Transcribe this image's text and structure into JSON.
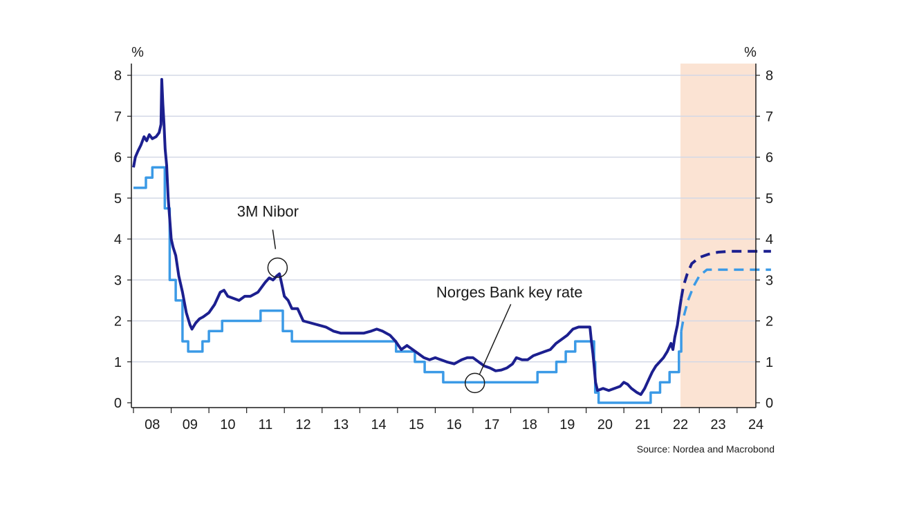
{
  "chart_data": {
    "type": "line",
    "y_unit_left": "%",
    "y_unit_right": "%",
    "ylim": [
      0,
      8
    ],
    "yticks": [
      0,
      1,
      2,
      3,
      4,
      5,
      6,
      7,
      8
    ],
    "xtick_labels": [
      "08",
      "09",
      "10",
      "11",
      "12",
      "13",
      "14",
      "15",
      "16",
      "17",
      "18",
      "19",
      "20",
      "21",
      "22",
      "23",
      "24"
    ],
    "xlim": [
      2008.0,
      2024.9
    ],
    "grid": "horizontal",
    "forecast_shading": {
      "from": 2022.5,
      "to": 2024.9,
      "color": "#fbe3d3"
    },
    "colors": {
      "nibor": "#1c1f8f",
      "keyrate": "#3b9ae6",
      "grid": "#d3d8e6",
      "axis": "#1a1a1a"
    },
    "series": [
      {
        "name": "3M Nibor",
        "style": "solid",
        "points": [
          [
            2008.0,
            5.75
          ],
          [
            2008.05,
            6.0
          ],
          [
            2008.12,
            6.15
          ],
          [
            2008.2,
            6.3
          ],
          [
            2008.28,
            6.5
          ],
          [
            2008.35,
            6.4
          ],
          [
            2008.42,
            6.55
          ],
          [
            2008.5,
            6.45
          ],
          [
            2008.6,
            6.5
          ],
          [
            2008.68,
            6.6
          ],
          [
            2008.73,
            6.8
          ],
          [
            2008.75,
            7.9
          ],
          [
            2008.78,
            7.3
          ],
          [
            2008.81,
            6.8
          ],
          [
            2008.84,
            6.2
          ],
          [
            2008.88,
            5.8
          ],
          [
            2008.92,
            5.0
          ],
          [
            2008.96,
            4.5
          ],
          [
            2009.0,
            4.0
          ],
          [
            2009.05,
            3.8
          ],
          [
            2009.12,
            3.6
          ],
          [
            2009.2,
            3.1
          ],
          [
            2009.3,
            2.7
          ],
          [
            2009.4,
            2.2
          ],
          [
            2009.5,
            1.9
          ],
          [
            2009.55,
            1.8
          ],
          [
            2009.65,
            1.95
          ],
          [
            2009.75,
            2.05
          ],
          [
            2009.85,
            2.1
          ],
          [
            2010.0,
            2.2
          ],
          [
            2010.15,
            2.4
          ],
          [
            2010.3,
            2.7
          ],
          [
            2010.4,
            2.75
          ],
          [
            2010.5,
            2.6
          ],
          [
            2010.65,
            2.55
          ],
          [
            2010.8,
            2.5
          ],
          [
            2010.95,
            2.6
          ],
          [
            2011.1,
            2.6
          ],
          [
            2011.3,
            2.7
          ],
          [
            2011.5,
            2.95
          ],
          [
            2011.6,
            3.05
          ],
          [
            2011.7,
            3.0
          ],
          [
            2011.8,
            3.1
          ],
          [
            2011.87,
            3.15
          ],
          [
            2011.92,
            2.95
          ],
          [
            2012.0,
            2.6
          ],
          [
            2012.1,
            2.5
          ],
          [
            2012.2,
            2.3
          ],
          [
            2012.35,
            2.3
          ],
          [
            2012.5,
            2.0
          ],
          [
            2012.7,
            1.95
          ],
          [
            2012.9,
            1.9
          ],
          [
            2013.1,
            1.85
          ],
          [
            2013.3,
            1.75
          ],
          [
            2013.5,
            1.7
          ],
          [
            2013.7,
            1.7
          ],
          [
            2013.9,
            1.7
          ],
          [
            2014.1,
            1.7
          ],
          [
            2014.3,
            1.75
          ],
          [
            2014.45,
            1.8
          ],
          [
            2014.6,
            1.75
          ],
          [
            2014.8,
            1.65
          ],
          [
            2014.95,
            1.5
          ],
          [
            2015.1,
            1.3
          ],
          [
            2015.25,
            1.4
          ],
          [
            2015.4,
            1.3
          ],
          [
            2015.55,
            1.2
          ],
          [
            2015.7,
            1.1
          ],
          [
            2015.85,
            1.05
          ],
          [
            2016.0,
            1.1
          ],
          [
            2016.15,
            1.05
          ],
          [
            2016.3,
            1.0
          ],
          [
            2016.5,
            0.95
          ],
          [
            2016.7,
            1.05
          ],
          [
            2016.85,
            1.1
          ],
          [
            2017.0,
            1.1
          ],
          [
            2017.15,
            1.0
          ],
          [
            2017.3,
            0.9
          ],
          [
            2017.45,
            0.85
          ],
          [
            2017.6,
            0.78
          ],
          [
            2017.75,
            0.8
          ],
          [
            2017.9,
            0.85
          ],
          [
            2018.05,
            0.95
          ],
          [
            2018.15,
            1.1
          ],
          [
            2018.3,
            1.05
          ],
          [
            2018.45,
            1.05
          ],
          [
            2018.6,
            1.15
          ],
          [
            2018.75,
            1.2
          ],
          [
            2018.9,
            1.25
          ],
          [
            2019.05,
            1.3
          ],
          [
            2019.2,
            1.45
          ],
          [
            2019.35,
            1.55
          ],
          [
            2019.5,
            1.65
          ],
          [
            2019.65,
            1.8
          ],
          [
            2019.8,
            1.85
          ],
          [
            2019.95,
            1.85
          ],
          [
            2020.1,
            1.85
          ],
          [
            2020.14,
            1.5
          ],
          [
            2020.18,
            1.2
          ],
          [
            2020.21,
            0.9
          ],
          [
            2020.25,
            0.5
          ],
          [
            2020.3,
            0.3
          ],
          [
            2020.45,
            0.35
          ],
          [
            2020.6,
            0.3
          ],
          [
            2020.75,
            0.35
          ],
          [
            2020.9,
            0.4
          ],
          [
            2021.0,
            0.5
          ],
          [
            2021.1,
            0.45
          ],
          [
            2021.2,
            0.35
          ],
          [
            2021.35,
            0.25
          ],
          [
            2021.45,
            0.2
          ],
          [
            2021.55,
            0.35
          ],
          [
            2021.65,
            0.55
          ],
          [
            2021.75,
            0.75
          ],
          [
            2021.85,
            0.9
          ],
          [
            2021.95,
            1.0
          ],
          [
            2022.05,
            1.1
          ],
          [
            2022.15,
            1.25
          ],
          [
            2022.25,
            1.45
          ],
          [
            2022.3,
            1.3
          ],
          [
            2022.35,
            1.6
          ],
          [
            2022.42,
            1.9
          ],
          [
            2022.48,
            2.3
          ],
          [
            2022.52,
            2.55
          ]
        ]
      },
      {
        "name": "3M Nibor forecast",
        "style": "dashed",
        "points": [
          [
            2022.52,
            2.55
          ],
          [
            2022.58,
            2.85
          ],
          [
            2022.68,
            3.15
          ],
          [
            2022.8,
            3.4
          ],
          [
            2023.0,
            3.55
          ],
          [
            2023.25,
            3.63
          ],
          [
            2023.5,
            3.68
          ],
          [
            2023.8,
            3.7
          ],
          [
            2024.1,
            3.7
          ],
          [
            2024.9,
            3.7
          ]
        ]
      },
      {
        "name": "Norges Bank key rate",
        "style": "solid",
        "points": [
          [
            2008.0,
            5.25
          ],
          [
            2008.33,
            5.25
          ],
          [
            2008.33,
            5.5
          ],
          [
            2008.5,
            5.5
          ],
          [
            2008.5,
            5.75
          ],
          [
            2008.83,
            5.75
          ],
          [
            2008.83,
            4.75
          ],
          [
            2008.96,
            4.75
          ],
          [
            2008.96,
            3.0
          ],
          [
            2009.12,
            3.0
          ],
          [
            2009.12,
            2.5
          ],
          [
            2009.3,
            2.5
          ],
          [
            2009.3,
            1.5
          ],
          [
            2009.45,
            1.5
          ],
          [
            2009.45,
            1.25
          ],
          [
            2009.83,
            1.25
          ],
          [
            2009.83,
            1.5
          ],
          [
            2010.0,
            1.5
          ],
          [
            2010.0,
            1.75
          ],
          [
            2010.35,
            1.75
          ],
          [
            2010.35,
            2.0
          ],
          [
            2011.37,
            2.0
          ],
          [
            2011.37,
            2.25
          ],
          [
            2011.96,
            2.25
          ],
          [
            2011.96,
            1.75
          ],
          [
            2012.2,
            1.75
          ],
          [
            2012.2,
            1.5
          ],
          [
            2014.96,
            1.5
          ],
          [
            2014.96,
            1.25
          ],
          [
            2015.46,
            1.25
          ],
          [
            2015.46,
            1.0
          ],
          [
            2015.72,
            1.0
          ],
          [
            2015.72,
            0.75
          ],
          [
            2016.21,
            0.75
          ],
          [
            2016.21,
            0.5
          ],
          [
            2018.71,
            0.5
          ],
          [
            2018.71,
            0.75
          ],
          [
            2019.21,
            0.75
          ],
          [
            2019.21,
            1.0
          ],
          [
            2019.46,
            1.0
          ],
          [
            2019.46,
            1.25
          ],
          [
            2019.71,
            1.25
          ],
          [
            2019.71,
            1.5
          ],
          [
            2020.21,
            1.5
          ],
          [
            2020.21,
            1.0
          ],
          [
            2020.24,
            1.0
          ],
          [
            2020.24,
            0.25
          ],
          [
            2020.33,
            0.25
          ],
          [
            2020.33,
            0.0
          ],
          [
            2021.71,
            0.0
          ],
          [
            2021.71,
            0.25
          ],
          [
            2021.96,
            0.25
          ],
          [
            2021.96,
            0.5
          ],
          [
            2022.21,
            0.5
          ],
          [
            2022.21,
            0.75
          ],
          [
            2022.46,
            0.75
          ],
          [
            2022.46,
            1.25
          ],
          [
            2022.52,
            1.25
          ],
          [
            2022.52,
            1.75
          ]
        ]
      },
      {
        "name": "Norges Bank key rate forecast",
        "style": "dashed",
        "points": [
          [
            2022.52,
            1.75
          ],
          [
            2022.6,
            2.15
          ],
          [
            2022.7,
            2.5
          ],
          [
            2022.85,
            2.85
          ],
          [
            2023.0,
            3.1
          ],
          [
            2023.2,
            3.25
          ],
          [
            2024.9,
            3.25
          ]
        ]
      }
    ],
    "annotations": [
      {
        "text": "3M Nibor",
        "point": [
          2011.82,
          3.3
        ]
      },
      {
        "text": "Norges Bank key rate",
        "point": [
          2017.05,
          0.5
        ]
      }
    ],
    "source": "Source: Nordea and Macrobond"
  }
}
